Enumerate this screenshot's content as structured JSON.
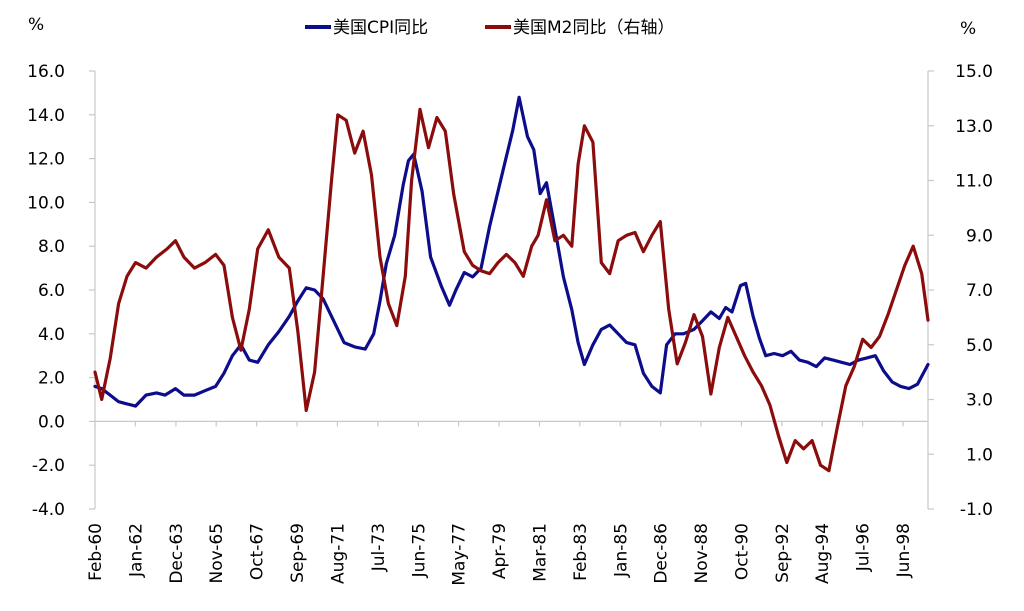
{
  "chart_data": {
    "type": "line",
    "left_unit": "%",
    "right_unit": "%",
    "y_left": {
      "min": -4.0,
      "max": 16.0,
      "ticks": [
        {
          "value": -4.0,
          "label": "-4.0",
          "color": "#e0201b"
        },
        {
          "value": -2.0,
          "label": "-2.0",
          "color": "#e0201b"
        },
        {
          "value": 0.0,
          "label": "0.0",
          "color": "#000000"
        },
        {
          "value": 2.0,
          "label": "2.0",
          "color": "#000000"
        },
        {
          "value": 4.0,
          "label": "4.0",
          "color": "#000000"
        },
        {
          "value": 6.0,
          "label": "6.0",
          "color": "#000000"
        },
        {
          "value": 8.0,
          "label": "8.0",
          "color": "#000000"
        },
        {
          "value": 10.0,
          "label": "10.0",
          "color": "#000000"
        },
        {
          "value": 12.0,
          "label": "12.0",
          "color": "#000000"
        },
        {
          "value": 14.0,
          "label": "14.0",
          "color": "#000000"
        },
        {
          "value": 16.0,
          "label": "16.0",
          "color": "#000000"
        }
      ]
    },
    "y_right": {
      "min": -1.0,
      "max": 15.0,
      "ticks": [
        {
          "value": -1.0,
          "label": "-1.0",
          "color": "#e0201b"
        },
        {
          "value": 1.0,
          "label": "1.0",
          "color": "#000000"
        },
        {
          "value": 3.0,
          "label": "3.0",
          "color": "#000000"
        },
        {
          "value": 5.0,
          "label": "5.0",
          "color": "#000000"
        },
        {
          "value": 7.0,
          "label": "7.0",
          "color": "#000000"
        },
        {
          "value": 9.0,
          "label": "9.0",
          "color": "#000000"
        },
        {
          "value": 11.0,
          "label": "11.0",
          "color": "#000000"
        },
        {
          "value": 13.0,
          "label": "13.0",
          "color": "#000000"
        },
        {
          "value": 15.0,
          "label": "15.0",
          "color": "#000000"
        }
      ]
    },
    "x_domain": [
      1960.08,
      1999.6
    ],
    "x_ticks": [
      {
        "value": 1960.08,
        "label": "Feb-60"
      },
      {
        "value": 1962.0,
        "label": "Jan-62"
      },
      {
        "value": 1963.92,
        "label": "Dec-63"
      },
      {
        "value": 1965.83,
        "label": "Nov-65"
      },
      {
        "value": 1967.75,
        "label": "Oct-67"
      },
      {
        "value": 1969.67,
        "label": "Sep-69"
      },
      {
        "value": 1971.58,
        "label": "Aug-71"
      },
      {
        "value": 1973.5,
        "label": "Jul-73"
      },
      {
        "value": 1975.42,
        "label": "Jun-75"
      },
      {
        "value": 1977.33,
        "label": "May-77"
      },
      {
        "value": 1979.25,
        "label": "Apr-79"
      },
      {
        "value": 1981.17,
        "label": "Mar-81"
      },
      {
        "value": 1983.08,
        "label": "Feb-83"
      },
      {
        "value": 1985.0,
        "label": "Jan-85"
      },
      {
        "value": 1986.92,
        "label": "Dec-86"
      },
      {
        "value": 1988.83,
        "label": "Nov-88"
      },
      {
        "value": 1990.75,
        "label": "Oct-90"
      },
      {
        "value": 1992.67,
        "label": "Sep-92"
      },
      {
        "value": 1994.58,
        "label": "Aug-94"
      },
      {
        "value": 1996.5,
        "label": "Jul-96"
      },
      {
        "value": 1998.42,
        "label": "Jun-98"
      }
    ],
    "series": [
      {
        "name": "美国CPI同比",
        "axis": "left",
        "color": "#0d0d8c",
        "x": [
          1960.08,
          1960.4,
          1960.8,
          1961.2,
          1961.6,
          1962.0,
          1962.5,
          1963.0,
          1963.4,
          1963.9,
          1964.3,
          1964.8,
          1965.3,
          1965.8,
          1966.2,
          1966.6,
          1967.0,
          1967.4,
          1967.8,
          1968.3,
          1968.8,
          1969.3,
          1969.7,
          1970.1,
          1970.5,
          1970.9,
          1971.4,
          1971.9,
          1972.4,
          1972.9,
          1973.3,
          1973.6,
          1973.9,
          1974.3,
          1974.7,
          1974.95,
          1975.2,
          1975.6,
          1976.0,
          1976.5,
          1976.9,
          1977.2,
          1977.6,
          1978.0,
          1978.4,
          1978.8,
          1979.2,
          1979.6,
          1979.9,
          1980.2,
          1980.6,
          1980.9,
          1981.2,
          1981.5,
          1981.9,
          1982.3,
          1982.7,
          1983.0,
          1983.3,
          1983.7,
          1984.1,
          1984.5,
          1984.9,
          1985.3,
          1985.7,
          1986.1,
          1986.5,
          1986.9,
          1987.2,
          1987.6,
          1988.0,
          1988.5,
          1988.9,
          1989.3,
          1989.7,
          1990.0,
          1990.3,
          1990.7,
          1990.95,
          1991.3,
          1991.6,
          1991.9,
          1992.3,
          1992.7,
          1993.1,
          1993.5,
          1993.9,
          1994.3,
          1994.7,
          1995.1,
          1995.5,
          1995.9,
          1996.3,
          1996.7,
          1997.1,
          1997.5,
          1997.9,
          1998.3,
          1998.7,
          1999.1,
          1999.6
        ],
        "y": [
          1.6,
          1.5,
          1.2,
          0.9,
          0.8,
          0.7,
          1.2,
          1.3,
          1.2,
          1.5,
          1.2,
          1.2,
          1.4,
          1.6,
          2.2,
          3.0,
          3.5,
          2.8,
          2.7,
          3.5,
          4.1,
          4.8,
          5.5,
          6.1,
          6.0,
          5.6,
          4.6,
          3.6,
          3.4,
          3.3,
          4.0,
          5.5,
          7.2,
          8.5,
          10.8,
          11.9,
          12.2,
          10.5,
          7.5,
          6.2,
          5.3,
          6.0,
          6.8,
          6.6,
          7.0,
          8.9,
          10.5,
          12.1,
          13.3,
          14.8,
          13.0,
          12.4,
          10.4,
          10.9,
          8.8,
          6.6,
          5.1,
          3.6,
          2.6,
          3.5,
          4.2,
          4.4,
          4.0,
          3.6,
          3.5,
          2.2,
          1.6,
          1.3,
          3.5,
          4.0,
          4.0,
          4.2,
          4.6,
          5.0,
          4.7,
          5.2,
          5.0,
          6.2,
          6.3,
          4.8,
          3.8,
          3.0,
          3.1,
          3.0,
          3.2,
          2.8,
          2.7,
          2.5,
          2.9,
          2.8,
          2.7,
          2.6,
          2.8,
          2.9,
          3.0,
          2.3,
          1.8,
          1.6,
          1.5,
          1.7,
          2.6
        ]
      },
      {
        "name": "美国M2同比（右轴）",
        "axis": "right",
        "color": "#8b0c0c",
        "x": [
          1960.08,
          1960.4,
          1960.8,
          1961.2,
          1961.6,
          1962.0,
          1962.5,
          1963.0,
          1963.5,
          1963.9,
          1964.3,
          1964.8,
          1965.3,
          1965.8,
          1966.2,
          1966.6,
          1967.0,
          1967.4,
          1967.8,
          1968.3,
          1968.8,
          1969.3,
          1969.7,
          1970.1,
          1970.5,
          1970.9,
          1971.3,
          1971.6,
          1972.0,
          1972.4,
          1972.8,
          1973.2,
          1973.6,
          1974.0,
          1974.4,
          1974.8,
          1975.1,
          1975.5,
          1975.9,
          1976.3,
          1976.7,
          1977.1,
          1977.6,
          1978.0,
          1978.4,
          1978.8,
          1979.2,
          1979.6,
          1980.0,
          1980.4,
          1980.8,
          1981.1,
          1981.5,
          1981.9,
          1982.3,
          1982.7,
          1983.0,
          1983.3,
          1983.7,
          1984.1,
          1984.5,
          1984.9,
          1985.3,
          1985.7,
          1986.1,
          1986.5,
          1986.9,
          1987.3,
          1987.7,
          1988.1,
          1988.5,
          1988.9,
          1989.3,
          1989.7,
          1990.1,
          1990.5,
          1990.9,
          1991.3,
          1991.7,
          1992.1,
          1992.5,
          1992.9,
          1993.3,
          1993.7,
          1994.1,
          1994.5,
          1994.9,
          1995.3,
          1995.7,
          1996.1,
          1996.5,
          1996.9,
          1997.3,
          1997.7,
          1998.1,
          1998.5,
          1998.9,
          1999.3,
          1999.6
        ],
        "y": [
          4.0,
          3.0,
          4.5,
          6.5,
          7.5,
          8.0,
          7.8,
          8.2,
          8.5,
          8.8,
          8.2,
          7.8,
          8.0,
          8.3,
          7.9,
          6.0,
          4.8,
          6.3,
          8.5,
          9.2,
          8.2,
          7.8,
          5.5,
          2.6,
          4.0,
          7.5,
          11.0,
          13.4,
          13.2,
          12.0,
          12.8,
          11.2,
          8.2,
          6.5,
          5.7,
          7.5,
          11.0,
          13.6,
          12.2,
          13.3,
          12.8,
          10.5,
          8.4,
          7.9,
          7.7,
          7.6,
          8.0,
          8.3,
          8.0,
          7.5,
          8.6,
          9.0,
          10.3,
          8.8,
          9.0,
          8.6,
          11.6,
          13.0,
          12.4,
          8.0,
          7.6,
          8.8,
          9.0,
          9.1,
          8.4,
          9.0,
          9.5,
          6.3,
          4.3,
          5.1,
          6.1,
          5.3,
          3.2,
          4.9,
          6.0,
          5.3,
          4.6,
          4.0,
          3.5,
          2.8,
          1.7,
          0.7,
          1.5,
          1.2,
          1.5,
          0.6,
          0.4,
          2.0,
          3.5,
          4.2,
          5.2,
          4.9,
          5.3,
          6.1,
          7.0,
          7.9,
          8.6,
          7.6,
          5.9
        ]
      }
    ]
  }
}
